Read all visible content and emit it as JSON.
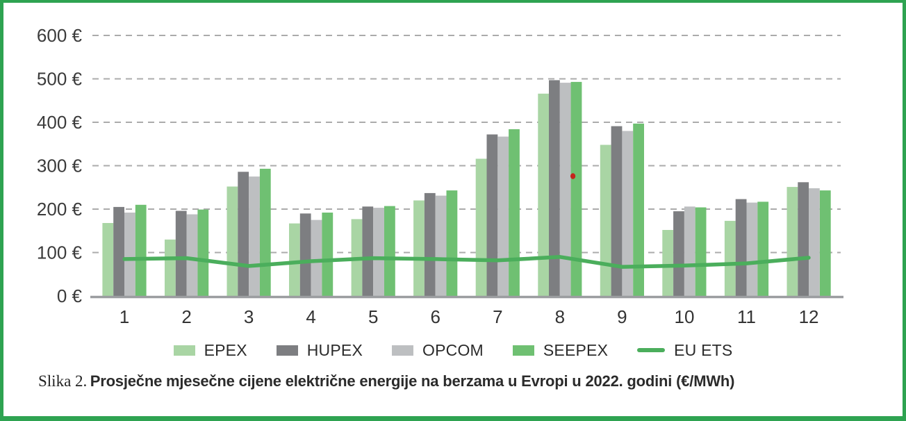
{
  "figure": {
    "caption_label": "Slika 2.",
    "caption_title": "Prosječne mjesečne cijene električne energije na berzama u Evropi u 2022. godini (€/MWh)"
  },
  "colors": {
    "frame": "#2ea351",
    "grid": "#ababab",
    "axis": "#9b9da0",
    "tick_text": "#3b3b3b",
    "annotation_dot": "#c4251d"
  },
  "chart_data": {
    "type": "bar",
    "title": "",
    "unit": "€/MWh",
    "xlabel": "",
    "ylabel": "",
    "ylim": [
      0,
      620
    ],
    "grid": "dashed-horizontal",
    "legend_position": "bottom",
    "categories": [
      "1",
      "2",
      "3",
      "4",
      "5",
      "6",
      "7",
      "8",
      "9",
      "10",
      "11",
      "12"
    ],
    "series": [
      {
        "name": "EPEX",
        "type": "bar",
        "color": "#a9d5a4",
        "values": [
          168,
          130,
          252,
          167,
          177,
          220,
          316,
          466,
          348,
          152,
          173,
          251
        ]
      },
      {
        "name": "HUPEX",
        "type": "bar",
        "color": "#7d7e81",
        "values": [
          205,
          196,
          286,
          190,
          206,
          237,
          372,
          497,
          391,
          195,
          223,
          262
        ]
      },
      {
        "name": "OPCOM",
        "type": "bar",
        "color": "#bdbfc1",
        "values": [
          192,
          188,
          275,
          175,
          203,
          231,
          367,
          491,
          380,
          206,
          215,
          248
        ]
      },
      {
        "name": "SEEPEX",
        "type": "bar",
        "color": "#6fc072",
        "values": [
          210,
          199,
          293,
          192,
          207,
          243,
          384,
          493,
          397,
          204,
          217,
          243
        ]
      },
      {
        "name": "EU ETS",
        "type": "line",
        "color": "#4bae5c",
        "values": [
          85,
          87,
          69,
          80,
          87,
          85,
          82,
          90,
          67,
          70,
          75,
          88
        ]
      }
    ],
    "yticks": [
      {
        "value": 0,
        "label": "0 €"
      },
      {
        "value": 100,
        "label": "100 €"
      },
      {
        "value": 200,
        "label": "200 €"
      },
      {
        "value": 300,
        "label": "300 €"
      },
      {
        "value": 400,
        "label": "400 €"
      },
      {
        "value": 500,
        "label": "500 €"
      },
      {
        "value": 600,
        "label": "600 €"
      }
    ],
    "annotation": {
      "type": "dot",
      "month": 8,
      "value": 276,
      "color": "#c4251d"
    }
  }
}
